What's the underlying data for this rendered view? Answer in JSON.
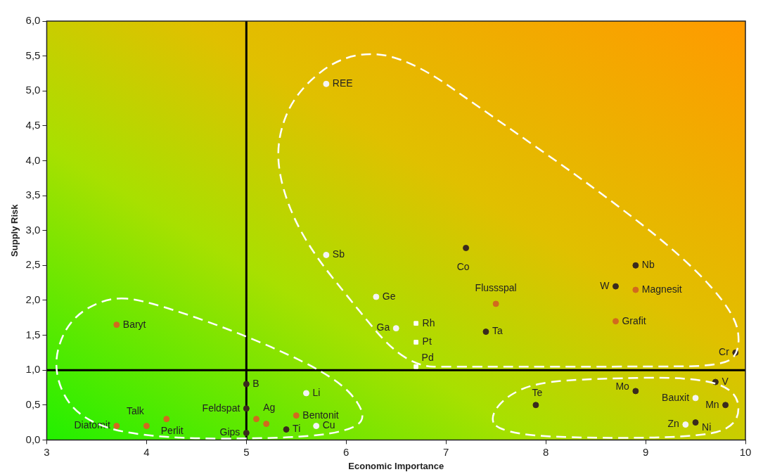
{
  "chart_data": {
    "type": "scatter",
    "xlabel": "Economic Importance",
    "ylabel": "Supply Risk",
    "xlim": [
      3,
      10
    ],
    "xticks": [
      3,
      4,
      5,
      6,
      7,
      8,
      9,
      10
    ],
    "ylim": [
      0,
      6
    ],
    "yticks": [
      {
        "value": 0,
        "label": "0,0"
      },
      {
        "value": 0.5,
        "label": "0,5"
      },
      {
        "value": 1,
        "label": "1,0"
      },
      {
        "value": 1.5,
        "label": "1,5"
      },
      {
        "value": 2,
        "label": "2,0"
      },
      {
        "value": 2.5,
        "label": "2,5"
      },
      {
        "value": 3,
        "label": "3,0"
      },
      {
        "value": 3.5,
        "label": "3,5"
      },
      {
        "value": 4,
        "label": "4,0"
      },
      {
        "value": 4.5,
        "label": "4,5"
      },
      {
        "value": 5,
        "label": "5,0"
      },
      {
        "value": 5.5,
        "label": "5,5"
      },
      {
        "value": 6,
        "label": "6,0"
      }
    ],
    "grid": false,
    "legend": false,
    "series": [
      {
        "color": "#3a2a1e",
        "marker": "circle",
        "x": [
          7.2,
          7.4,
          8.7,
          8.9,
          9.9,
          9.7,
          8.9,
          9.8,
          9.5,
          7.9,
          5.0,
          5.4,
          5.0,
          5.0
        ],
        "values": [
          2.75,
          1.55,
          2.2,
          2.5,
          1.25,
          0.83,
          0.7,
          0.5,
          0.25,
          0.5,
          0.8,
          0.15,
          0.45,
          0.1
        ]
      },
      {
        "color": "#d2691e",
        "marker": "circle",
        "x": [
          7.5,
          8.9,
          8.7,
          3.7,
          3.7,
          4.0,
          4.2,
          5.1,
          5.2,
          5.5
        ],
        "values": [
          1.95,
          2.15,
          1.7,
          1.65,
          0.2,
          0.2,
          0.3,
          0.3,
          0.23,
          0.35
        ]
      },
      {
        "color": "#f4f4f4",
        "marker": "circle",
        "x": [
          5.8,
          5.8,
          6.3,
          6.5,
          5.6,
          5.7,
          9.5,
          9.4
        ],
        "values": [
          5.1,
          2.65,
          2.05,
          1.6,
          0.67,
          0.2,
          0.6,
          0.22
        ]
      },
      {
        "color": "#ffffff",
        "marker": "square",
        "x": [
          6.7,
          6.7,
          6.7
        ],
        "values": [
          1.67,
          1.4,
          1.05
        ]
      }
    ],
    "ref_lines": [
      {
        "axis": "x",
        "value": 5,
        "color": "#000000"
      },
      {
        "axis": "y",
        "value": 1,
        "color": "#000000"
      }
    ],
    "annotations": [
      {
        "text": "REE",
        "x": 5.8,
        "y": 5.1
      },
      {
        "text": "Sb",
        "x": 5.8,
        "y": 2.65
      },
      {
        "text": "Ge",
        "x": 6.3,
        "y": 2.05
      },
      {
        "text": "Ga",
        "x": 6.5,
        "y": 1.6
      },
      {
        "text": "Rh",
        "x": 6.7,
        "y": 1.67
      },
      {
        "text": "Pt",
        "x": 6.7,
        "y": 1.4
      },
      {
        "text": "Pd",
        "x": 6.7,
        "y": 1.05
      },
      {
        "text": "Co",
        "x": 7.2,
        "y": 2.75
      },
      {
        "text": "Flussspal",
        "x": 7.5,
        "y": 1.95
      },
      {
        "text": "Ta",
        "x": 7.4,
        "y": 1.55
      },
      {
        "text": "W",
        "x": 8.7,
        "y": 2.2
      },
      {
        "text": "Nb",
        "x": 8.9,
        "y": 2.5
      },
      {
        "text": "Magnesit",
        "x": 8.9,
        "y": 2.15
      },
      {
        "text": "Grafit",
        "x": 8.7,
        "y": 1.7
      },
      {
        "text": "Cr",
        "x": 9.9,
        "y": 1.25
      },
      {
        "text": "V",
        "x": 9.7,
        "y": 0.83
      },
      {
        "text": "Mo",
        "x": 8.9,
        "y": 0.7
      },
      {
        "text": "Bauxit",
        "x": 9.5,
        "y": 0.6
      },
      {
        "text": "Mn",
        "x": 9.8,
        "y": 0.5
      },
      {
        "text": "Ni",
        "x": 9.5,
        "y": 0.25
      },
      {
        "text": "Zn",
        "x": 9.4,
        "y": 0.22
      },
      {
        "text": "Te",
        "x": 7.9,
        "y": 0.5
      },
      {
        "text": "Baryt",
        "x": 3.7,
        "y": 1.65
      },
      {
        "text": "B",
        "x": 5.0,
        "y": 0.8
      },
      {
        "text": "Li",
        "x": 5.6,
        "y": 0.67
      },
      {
        "text": "Feldspat",
        "x": 5.0,
        "y": 0.45
      },
      {
        "text": "Ag",
        "x": 5.2,
        "y": 0.23
      },
      {
        "text": "Bentonit",
        "x": 5.5,
        "y": 0.35
      },
      {
        "text": "Cu",
        "x": 5.7,
        "y": 0.2
      },
      {
        "text": "Ti",
        "x": 5.4,
        "y": 0.15
      },
      {
        "text": "Gips",
        "x": 5.0,
        "y": 0.1
      },
      {
        "text": "Perlit",
        "x": 4.2,
        "y": 0.3
      },
      {
        "text": "Talk",
        "x": 4.0,
        "y": 0.2
      },
      {
        "text": "Diatomit",
        "x": 3.7,
        "y": 0.2
      }
    ]
  }
}
